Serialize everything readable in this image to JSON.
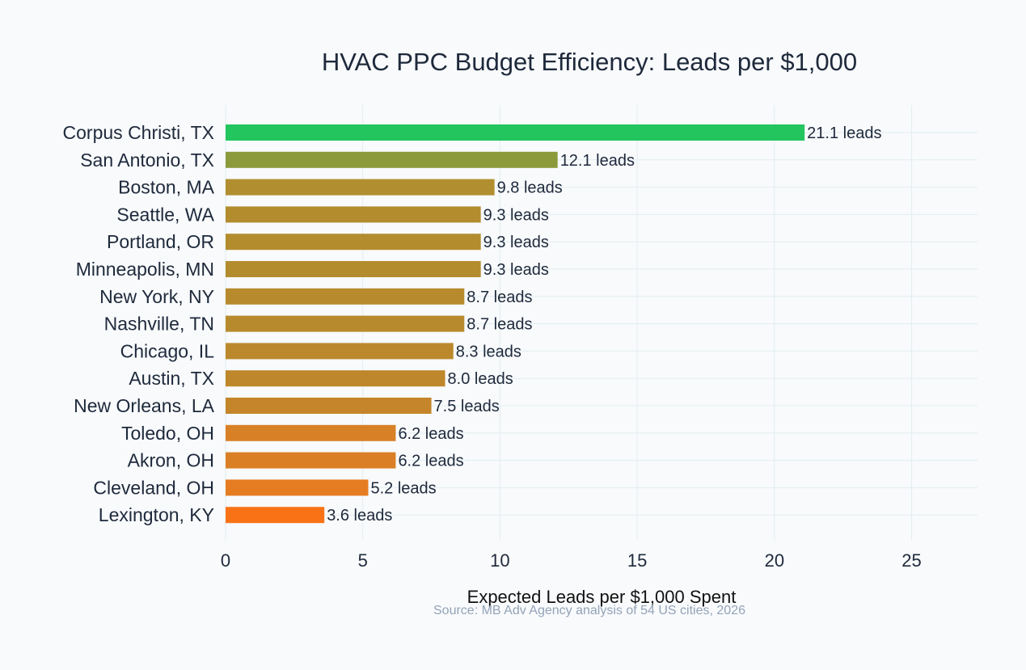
{
  "chart_data": {
    "type": "bar",
    "orientation": "horizontal",
    "title": "HVAC PPC Budget Efficiency: Leads per $1,000",
    "xlabel": "Expected Leads per $1,000 Spent",
    "ylabel": "",
    "source": "Source: MB Adv Agency analysis of 54 US cities, 2026",
    "xlim": [
      0,
      27.4
    ],
    "xticks": [
      0,
      5,
      10,
      15,
      20,
      25
    ],
    "grid": true,
    "legend": "none",
    "value_label_suffix": " leads",
    "categories": [
      "Corpus Christi, TX",
      "San Antonio, TX",
      "Boston, MA",
      "Seattle, WA",
      "Portland, OR",
      "Minneapolis, MN",
      "New York, NY",
      "Nashville, TN",
      "Chicago, IL",
      "Austin, TX",
      "New Orleans, LA",
      "Toledo, OH",
      "Akron, OH",
      "Cleveland, OH",
      "Lexington, KY"
    ],
    "values": [
      21.1,
      12.1,
      9.8,
      9.3,
      9.3,
      9.3,
      8.7,
      8.7,
      8.3,
      8.0,
      7.5,
      6.2,
      6.2,
      5.2,
      3.6
    ],
    "colors": [
      "#22c55e",
      "#8c9a3b",
      "#b18e2f",
      "#b38c2e",
      "#b38c2e",
      "#b38c2e",
      "#b78b2d",
      "#b78b2d",
      "#bb892c",
      "#bf872b",
      "#c5852a",
      "#d88026",
      "#da7f25",
      "#e67c22",
      "#f97316"
    ]
  }
}
